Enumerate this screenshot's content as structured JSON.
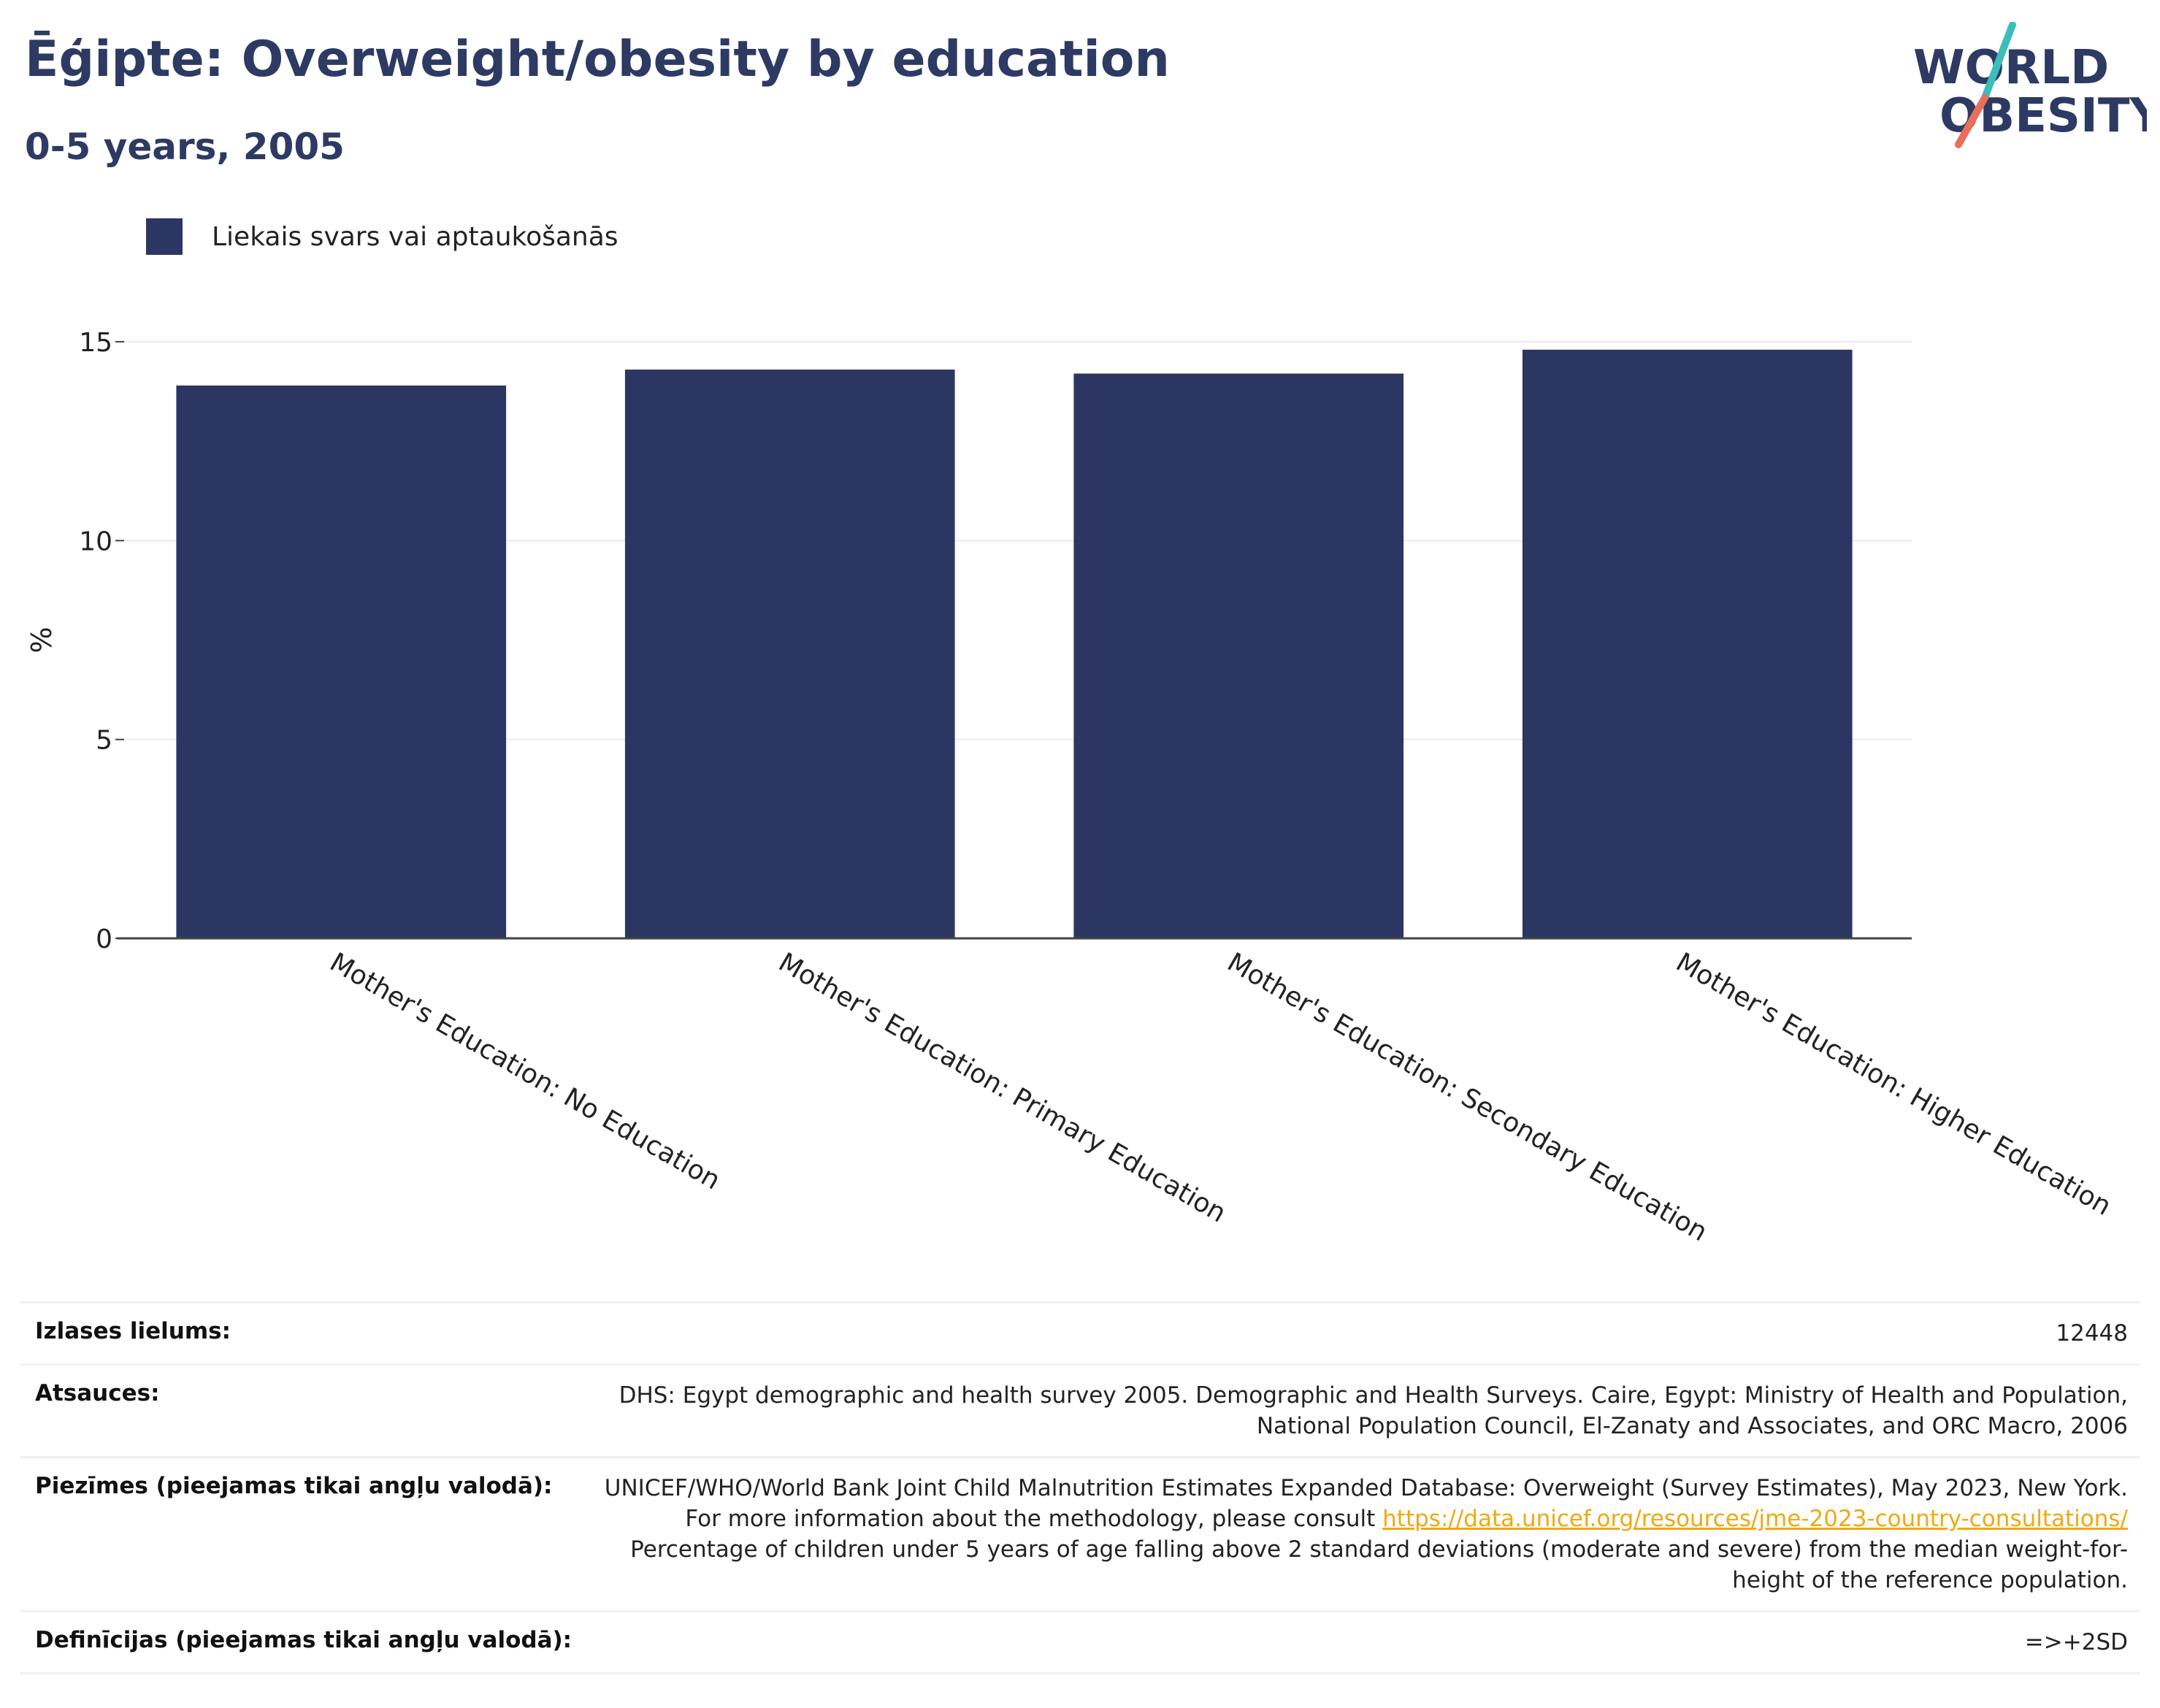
{
  "header": {
    "title": "Ēģipte: Overweight/obesity by education",
    "subtitle": "0-5 years, 2005"
  },
  "logo": {
    "line1": "WORLD",
    "line2": "OBESITY",
    "colors": {
      "text": "#2d3a63",
      "slash_top": "#3dbdb8",
      "slash_bottom": "#e8705a"
    }
  },
  "chart_data": {
    "type": "bar",
    "categories": [
      "Mother's Education: No Education",
      "Mother's Education: Primary Education",
      "Mother's Education: Secondary Education",
      "Mother's Education: Higher Education"
    ],
    "series": [
      {
        "name": "Liekais svars vai aptaukošanās",
        "values": [
          13.9,
          14.3,
          14.2,
          14.8
        ],
        "color": "#2b3663"
      }
    ],
    "ylabel": "%",
    "ylim": [
      0,
      15
    ],
    "yticks": [
      0,
      5,
      10,
      15
    ],
    "grid": true,
    "legend": "top-left"
  },
  "meta": {
    "rows": [
      {
        "key": "Izlases lielums:",
        "value": "12448"
      },
      {
        "key": "Atsauces:",
        "value": "DHS: Egypt demographic and health survey 2005. Demographic and Health Surveys. Caire, Egypt: Ministry of Health and Population, National Population Council, El-Zanaty and Associates, and ORC Macro, 2006"
      },
      {
        "key": "Piezīmes (pieejamas tikai angļu valodā):",
        "value_before": "UNICEF/WHO/World Bank Joint Child Malnutrition Estimates Expanded Database: Overweight (Survey Estimates), May 2023, New York. For more information about the methodology, please consult ",
        "link": "https://data.unicef.org/resources/jme-2023-country-consultations/",
        "value_after": " Percentage of children under 5 years of age falling above 2 standard deviations (moderate and severe) from the median weight-for-height of the reference population."
      },
      {
        "key": "Definīcijas (pieejamas tikai angļu valodā):",
        "value": "=>+2SD"
      }
    ]
  }
}
